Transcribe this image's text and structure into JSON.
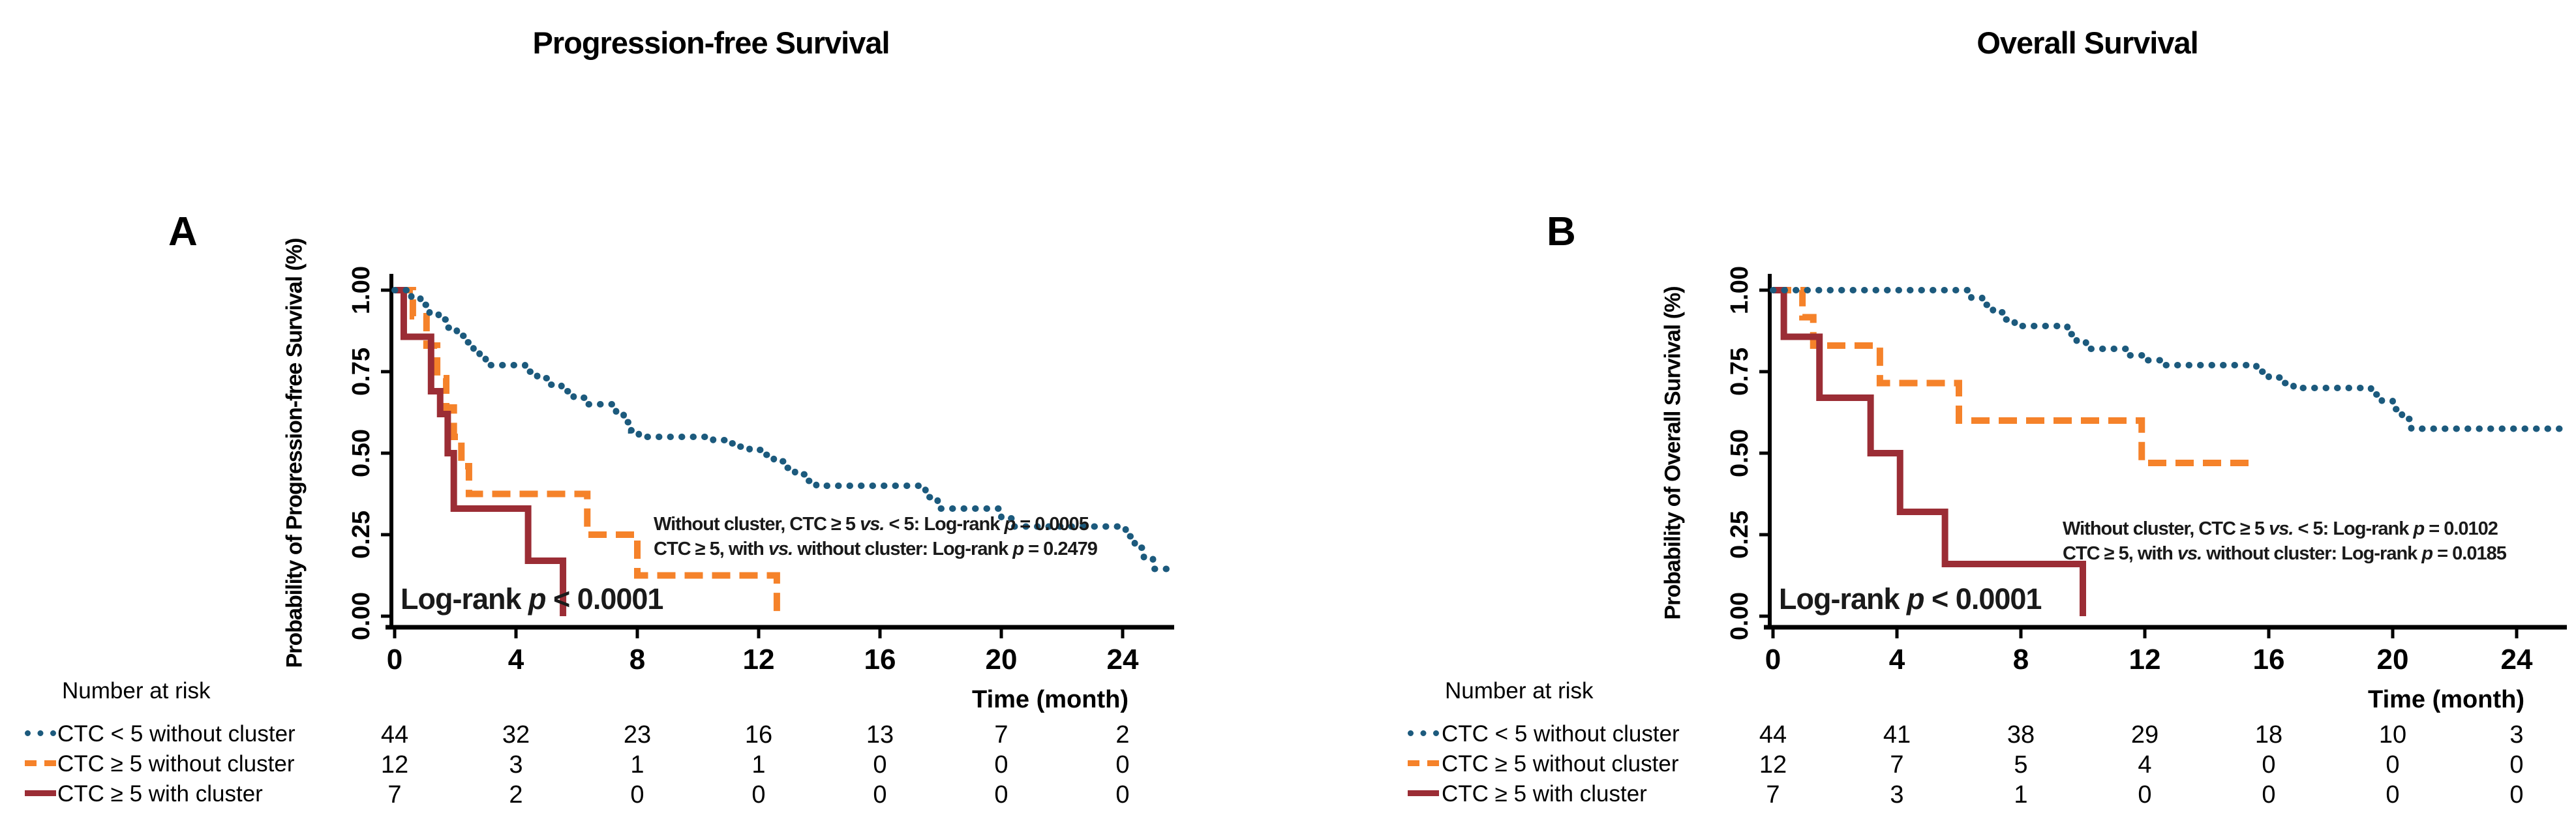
{
  "page": {
    "background": "#ffffff"
  },
  "colors": {
    "blue": "#1C5A7D",
    "orange": "#F5822A",
    "red": "#9B2D35",
    "axis": "#000000",
    "text": "#000000"
  },
  "chart_data": [
    {
      "panel_label": "A",
      "type": "line",
      "subtype": "kaplan-meier-step",
      "title": "Progression-free Survival",
      "ylabel": "Probability of Progression-free Survival (%)",
      "xlabel": "Time (month)",
      "xlim": [
        0,
        25.8
      ],
      "ylim": [
        0,
        1
      ],
      "xticks": [
        0,
        4,
        8,
        12,
        16,
        20,
        24
      ],
      "ytick_labels": [
        "0.00",
        "0.25",
        "0.50",
        "0.75",
        "1.00"
      ],
      "grid": false,
      "legend_position": "risk-table-left",
      "annotations": {
        "pairwise": [
          "Without cluster, CTC ≥ 5 vs. < 5: Log-rank p = 0.0005",
          "CTC ≥ 5, with vs. without cluster: Log-rank p = 0.2479"
        ],
        "overall": "Log-rank p < 0.0001"
      },
      "series": [
        {
          "name": "CTC < 5 without cluster",
          "color": "#1C5A7D",
          "line_style": "dotted",
          "steps": [
            [
              0,
              1.0
            ],
            [
              0.55,
              0.98
            ],
            [
              0.85,
              0.955
            ],
            [
              1.15,
              0.93
            ],
            [
              1.45,
              0.91
            ],
            [
              1.75,
              0.885
            ],
            [
              2.05,
              0.86
            ],
            [
              2.35,
              0.84
            ],
            [
              2.6,
              0.815
            ],
            [
              2.8,
              0.79
            ],
            [
              3.0,
              0.77
            ],
            [
              4.3,
              0.75
            ],
            [
              4.7,
              0.73
            ],
            [
              5.1,
              0.71
            ],
            [
              5.5,
              0.69
            ],
            [
              5.9,
              0.67
            ],
            [
              6.3,
              0.65
            ],
            [
              7.3,
              0.62
            ],
            [
              7.55,
              0.595
            ],
            [
              7.8,
              0.57
            ],
            [
              8.05,
              0.55
            ],
            [
              10.5,
              0.54
            ],
            [
              10.9,
              0.53
            ],
            [
              11.3,
              0.52
            ],
            [
              11.7,
              0.51
            ],
            [
              12.1,
              0.495
            ],
            [
              12.5,
              0.475
            ],
            [
              12.85,
              0.455
            ],
            [
              13.2,
              0.435
            ],
            [
              13.55,
              0.415
            ],
            [
              13.9,
              0.4
            ],
            [
              17.5,
              0.365
            ],
            [
              17.9,
              0.33
            ],
            [
              20.0,
              0.3
            ],
            [
              20.35,
              0.275
            ],
            [
              24.1,
              0.245
            ],
            [
              24.4,
              0.21
            ],
            [
              24.7,
              0.175
            ],
            [
              25.0,
              0.145
            ]
          ],
          "end": 25.7
        },
        {
          "name": "CTC ≥ 5 without cluster",
          "color": "#F5822A",
          "line_style": "dashed",
          "steps": [
            [
              0,
              1.0
            ],
            [
              0.6,
              0.92
            ],
            [
              1.05,
              0.83
            ],
            [
              1.4,
              0.73
            ],
            [
              1.7,
              0.64
            ],
            [
              1.95,
              0.55
            ],
            [
              2.2,
              0.46
            ],
            [
              2.45,
              0.375
            ],
            [
              6.35,
              0.25
            ],
            [
              8.0,
              0.125
            ],
            [
              12.6,
              0.0
            ]
          ],
          "end": 12.6
        },
        {
          "name": "CTC ≥ 5 with cluster",
          "color": "#9B2D35",
          "line_style": "solid",
          "steps": [
            [
              0,
              1.0
            ],
            [
              0.3,
              0.857
            ],
            [
              1.2,
              0.69
            ],
            [
              1.5,
              0.62
            ],
            [
              1.75,
              0.5
            ],
            [
              1.95,
              0.33
            ],
            [
              4.4,
              0.17
            ],
            [
              5.55,
              0.0
            ]
          ],
          "end": 5.55
        }
      ],
      "number_at_risk": {
        "header": "Number at risk",
        "time_points": [
          0,
          4,
          8,
          12,
          16,
          20,
          24
        ],
        "rows": [
          {
            "label": "CTC < 5 without cluster",
            "values": [
              44,
              32,
              23,
              16,
              13,
              7,
              2
            ]
          },
          {
            "label": "CTC ≥ 5 without cluster",
            "values": [
              12,
              3,
              1,
              1,
              0,
              0,
              0
            ]
          },
          {
            "label": "CTC ≥ 5 with cluster",
            "values": [
              7,
              2,
              0,
              0,
              0,
              0,
              0
            ]
          }
        ]
      }
    },
    {
      "panel_label": "B",
      "type": "line",
      "subtype": "kaplan-meier-step",
      "title": "Overall Survival",
      "ylabel": "Probability of Overall Survival (%)",
      "xlabel": "Time (month)",
      "xlim": [
        0,
        25.8
      ],
      "ylim": [
        0,
        1
      ],
      "xticks": [
        0,
        4,
        8,
        12,
        16,
        20,
        24
      ],
      "ytick_labels": [
        "0.00",
        "0.25",
        "0.50",
        "0.75",
        "1.00"
      ],
      "grid": false,
      "legend_position": "risk-table-left",
      "annotations": {
        "pairwise": [
          "Without cluster, CTC ≥ 5 vs. < 5: Log-rank p = 0.0102",
          "CTC ≥ 5, with vs. without cluster: Log-rank p = 0.0185"
        ],
        "overall": "Log-rank p < 0.0001"
      },
      "series": [
        {
          "name": "CTC < 5 without cluster",
          "color": "#1C5A7D",
          "line_style": "dotted",
          "steps": [
            [
              0,
              1.0
            ],
            [
              6.4,
              0.977
            ],
            [
              6.75,
              0.955
            ],
            [
              7.1,
              0.932
            ],
            [
              7.45,
              0.91
            ],
            [
              7.8,
              0.89
            ],
            [
              9.5,
              0.865
            ],
            [
              9.8,
              0.845
            ],
            [
              10.1,
              0.82
            ],
            [
              11.5,
              0.8
            ],
            [
              12.0,
              0.785
            ],
            [
              12.5,
              0.77
            ],
            [
              15.6,
              0.75
            ],
            [
              16.0,
              0.732
            ],
            [
              16.4,
              0.715
            ],
            [
              16.8,
              0.7
            ],
            [
              19.3,
              0.68
            ],
            [
              19.65,
              0.66
            ],
            [
              20.0,
              0.635
            ],
            [
              20.3,
              0.605
            ],
            [
              20.6,
              0.575
            ]
          ],
          "end": 25.6
        },
        {
          "name": "CTC ≥ 5 without cluster",
          "color": "#F5822A",
          "line_style": "dashed",
          "steps": [
            [
              0,
              1.0
            ],
            [
              0.95,
              0.917
            ],
            [
              1.3,
              0.83
            ],
            [
              3.45,
              0.715
            ],
            [
              6.0,
              0.6
            ],
            [
              11.9,
              0.47
            ]
          ],
          "end": 15.5
        },
        {
          "name": "CTC ≥ 5 with cluster",
          "color": "#9B2D35",
          "line_style": "solid",
          "steps": [
            [
              0,
              1.0
            ],
            [
              0.35,
              0.857
            ],
            [
              1.5,
              0.67
            ],
            [
              3.15,
              0.5
            ],
            [
              4.1,
              0.32
            ],
            [
              5.55,
              0.16
            ],
            [
              10.0,
              0.0
            ]
          ],
          "end": 10.0
        }
      ],
      "number_at_risk": {
        "header": "Number at risk",
        "time_points": [
          0,
          4,
          8,
          12,
          16,
          20,
          24
        ],
        "rows": [
          {
            "label": "CTC < 5 without cluster",
            "values": [
              44,
              41,
              38,
              29,
              18,
              10,
              3
            ]
          },
          {
            "label": "CTC ≥ 5 without cluster",
            "values": [
              12,
              7,
              5,
              4,
              0,
              0,
              0
            ]
          },
          {
            "label": "CTC ≥ 5 with cluster",
            "values": [
              7,
              3,
              1,
              0,
              0,
              0,
              0
            ]
          }
        ]
      }
    }
  ]
}
